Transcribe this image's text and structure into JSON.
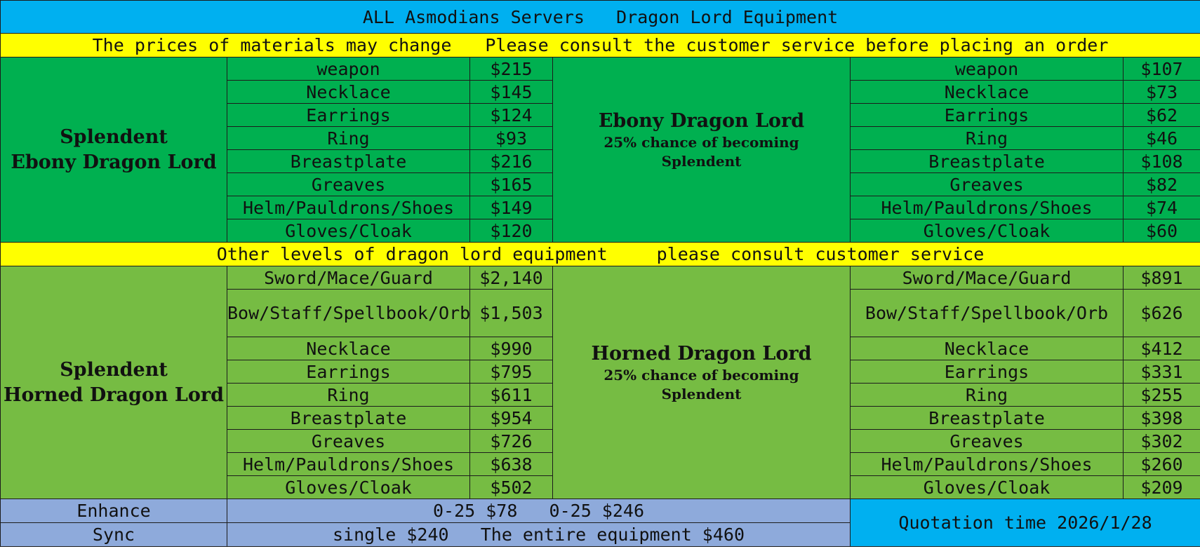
{
  "title": "ALL Asmodians Servers   Dragon Lord Equipment",
  "notice_top": {
    "part1": "The prices of materials may change",
    "part2": "Please consult the customer service before placing an order"
  },
  "ebony": {
    "left_title_line1": "Splendent",
    "left_title_line2": "Ebony Dragon Lord",
    "middle_title": "Ebony Dragon Lord",
    "middle_note_line1": "25% chance of becoming",
    "middle_note_line2": "Splendent",
    "left_items": [
      {
        "name": "weapon",
        "price": "$215"
      },
      {
        "name": "Necklace",
        "price": "$145"
      },
      {
        "name": "Earrings",
        "price": "$124"
      },
      {
        "name": "Ring",
        "price": "$93"
      },
      {
        "name": "Breastplate",
        "price": "$216"
      },
      {
        "name": "Greaves",
        "price": "$165"
      },
      {
        "name": "Helm/Pauldrons/Shoes",
        "price": "$149"
      },
      {
        "name": "Gloves/Cloak",
        "price": "$120"
      }
    ],
    "right_items": [
      {
        "name": "weapon",
        "price": "$107"
      },
      {
        "name": "Necklace",
        "price": "$73"
      },
      {
        "name": "Earrings",
        "price": "$62"
      },
      {
        "name": "Ring",
        "price": "$46"
      },
      {
        "name": "Breastplate",
        "price": "$108"
      },
      {
        "name": "Greaves",
        "price": "$82"
      },
      {
        "name": "Helm/Pauldrons/Shoes",
        "price": "$74"
      },
      {
        "name": "Gloves/Cloak",
        "price": "$60"
      }
    ]
  },
  "notice_mid": {
    "part1": "Other levels of dragon lord equipment",
    "part2": "please consult customer service"
  },
  "horned": {
    "left_title_line1": "Splendent",
    "left_title_line2": "Horned Dragon Lord",
    "middle_title": "Horned Dragon Lord",
    "middle_note_line1": "25% chance of becoming",
    "middle_note_line2": "Splendent",
    "left_items": [
      {
        "name": "Sword/Mace/Guard",
        "price": "$2,140"
      },
      {
        "name": "Bow/Staff/Spellbook/Orb",
        "price": "$1,503"
      },
      {
        "name": "Necklace",
        "price": "$990"
      },
      {
        "name": "Earrings",
        "price": "$795"
      },
      {
        "name": "Ring",
        "price": "$611"
      },
      {
        "name": "Breastplate",
        "price": "$954"
      },
      {
        "name": "Greaves",
        "price": "$726"
      },
      {
        "name": "Helm/Pauldrons/Shoes",
        "price": "$638"
      },
      {
        "name": "Gloves/Cloak",
        "price": "$502"
      }
    ],
    "right_items": [
      {
        "name": "Sword/Mace/Guard",
        "price": "$891"
      },
      {
        "name": "Bow/Staff/Spellbook/Orb",
        "price": "$626"
      },
      {
        "name": "Necklace",
        "price": "$412"
      },
      {
        "name": "Earrings",
        "price": "$331"
      },
      {
        "name": "Ring",
        "price": "$255"
      },
      {
        "name": "Breastplate",
        "price": "$398"
      },
      {
        "name": "Greaves",
        "price": "$302"
      },
      {
        "name": "Helm/Pauldrons/Shoes",
        "price": "$260"
      },
      {
        "name": "Gloves/Cloak",
        "price": "$209"
      }
    ]
  },
  "bottom": {
    "enhance_label": "Enhance",
    "enhance_value": "0-25 $78   0-25 $246",
    "sync_label": "Sync",
    "sync_value": "single $240   The entire equipment $460",
    "quotation": "Quotation time 2026/1/28"
  },
  "colors": {
    "title_bg": "#00b0f0",
    "notice_bg": "#ffff00",
    "ebony_bg": "#00b050",
    "horned_bg": "#76bc43",
    "bottom_bg": "#8eaadb"
  }
}
